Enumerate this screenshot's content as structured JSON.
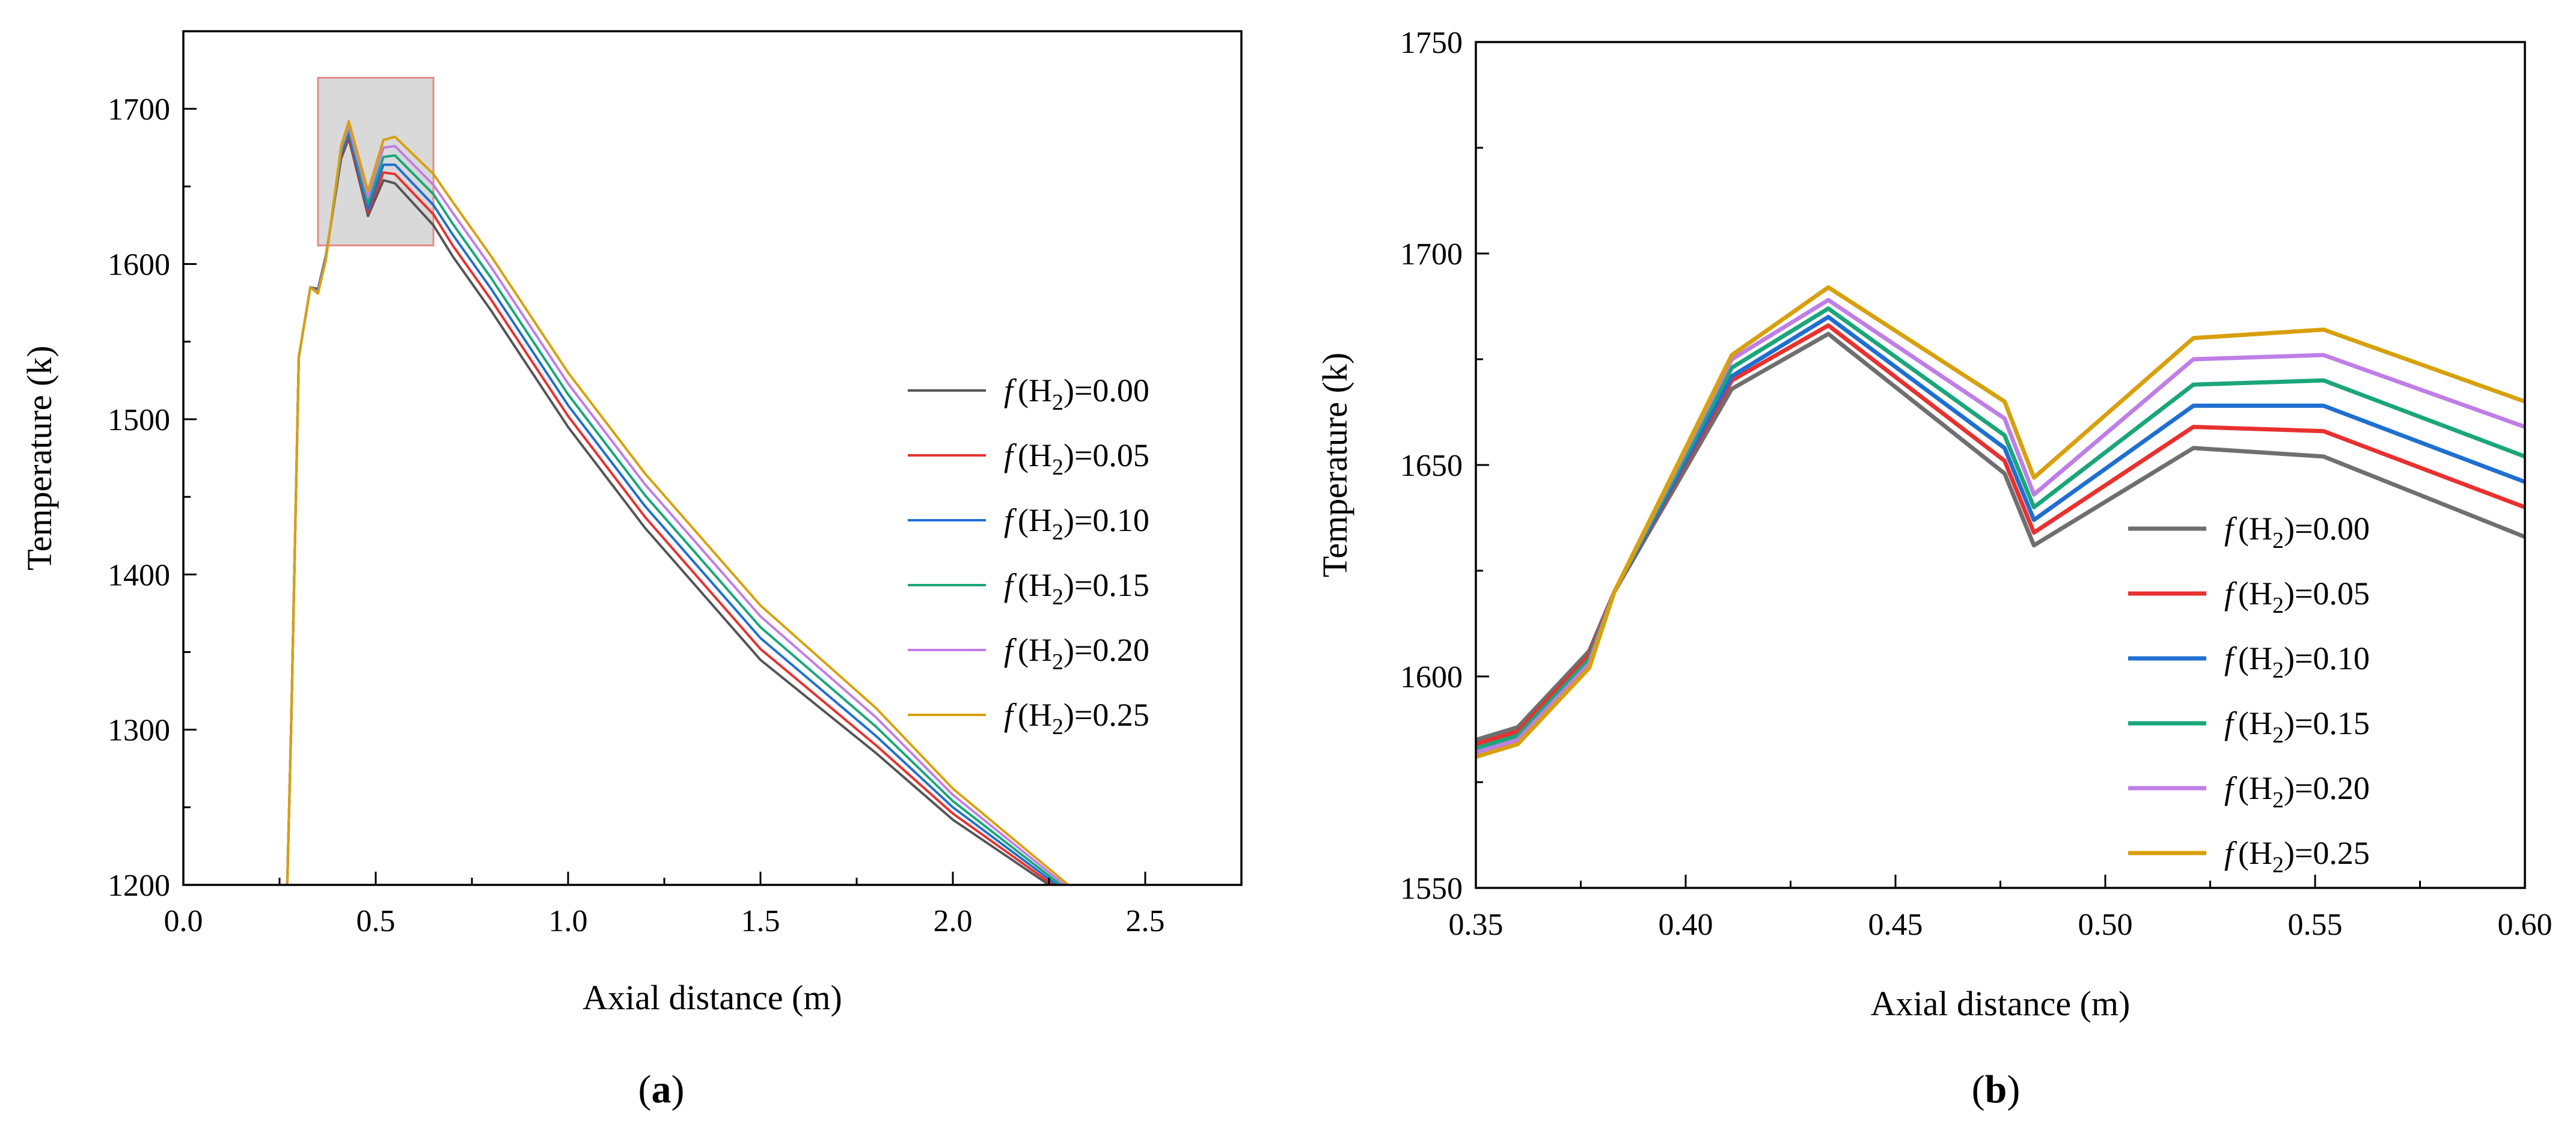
{
  "chart_data": [
    {
      "type": "line",
      "panel_label": "a",
      "xlabel": "Axial distance (m)",
      "ylabel": "Temperature (k)",
      "xlim": [
        0.0,
        2.75
      ],
      "ylim": [
        1200,
        1750
      ],
      "xticks": [
        "0.0",
        "0.5",
        "1.0",
        "1.5",
        "2.0",
        "2.5"
      ],
      "yticks": [
        "1200",
        "1300",
        "1400",
        "1500",
        "1600",
        "1700"
      ],
      "legend_position": "center-right",
      "highlight_region": {
        "x": [
          0.35,
          0.65
        ],
        "y": [
          1612,
          1720
        ]
      },
      "series": [
        {
          "name": "f(H2)=0.00",
          "f": "f",
          "base": "(H",
          "sub": "2",
          "suffix": ")=0.00",
          "color": "#555555",
          "x": [
            0.27,
            0.28,
            0.3,
            0.33,
            0.35,
            0.37,
            0.38,
            0.41,
            0.43,
            0.48,
            0.52,
            0.55,
            0.65,
            0.7,
            0.8,
            1.0,
            1.2,
            1.5,
            1.8,
            2.0,
            2.25
          ],
          "y": [
            1200,
            1300,
            1540,
            1585,
            1584,
            1605,
            1620,
            1668,
            1681,
            1631,
            1654,
            1652,
            1625,
            1605,
            1570,
            1495,
            1430,
            1345,
            1285,
            1242,
            1200
          ]
        },
        {
          "name": "f(H2)=0.05",
          "f": "f",
          "base": "(H",
          "sub": "2",
          "suffix": ")=0.05",
          "color": "#e8312f",
          "x": [
            0.27,
            0.28,
            0.3,
            0.33,
            0.35,
            0.37,
            0.38,
            0.41,
            0.43,
            0.48,
            0.52,
            0.55,
            0.65,
            0.7,
            0.8,
            1.0,
            1.2,
            1.5,
            1.8,
            2.0,
            2.26
          ],
          "y": [
            1200,
            1300,
            1540,
            1585,
            1583,
            1604,
            1620,
            1670,
            1683,
            1633,
            1659,
            1658,
            1632,
            1612,
            1577,
            1502,
            1437,
            1352,
            1290,
            1246,
            1200
          ]
        },
        {
          "name": "f(H2)=0.10",
          "f": "f",
          "base": "(H",
          "sub": "2",
          "suffix": ")=0.10",
          "color": "#1f6fd1",
          "x": [
            0.27,
            0.28,
            0.3,
            0.33,
            0.35,
            0.37,
            0.38,
            0.41,
            0.43,
            0.48,
            0.52,
            0.55,
            0.65,
            0.7,
            0.8,
            1.0,
            1.2,
            1.5,
            1.8,
            2.0,
            2.27
          ],
          "y": [
            1200,
            1300,
            1540,
            1585,
            1583,
            1604,
            1620,
            1671,
            1685,
            1635,
            1664,
            1664,
            1638,
            1619,
            1584,
            1509,
            1444,
            1359,
            1296,
            1250,
            1200
          ]
        },
        {
          "name": "f(H2)=0.15",
          "f": "f",
          "base": "(H",
          "sub": "2",
          "suffix": ")=0.15",
          "color": "#1aa67a",
          "x": [
            0.27,
            0.28,
            0.3,
            0.33,
            0.35,
            0.37,
            0.38,
            0.41,
            0.43,
            0.48,
            0.52,
            0.55,
            0.65,
            0.7,
            0.8,
            1.0,
            1.2,
            1.5,
            1.8,
            2.0,
            2.28
          ],
          "y": [
            1200,
            1300,
            1540,
            1585,
            1582,
            1603,
            1620,
            1673,
            1687,
            1639,
            1669,
            1670,
            1645,
            1626,
            1591,
            1516,
            1451,
            1366,
            1302,
            1254,
            1200
          ]
        },
        {
          "name": "f(H2)=0.20",
          "f": "f",
          "base": "(H",
          "sub": "2",
          "suffix": ")=0.20",
          "color": "#bf7ee6",
          "x": [
            0.27,
            0.28,
            0.3,
            0.33,
            0.35,
            0.37,
            0.38,
            0.41,
            0.43,
            0.48,
            0.52,
            0.55,
            0.65,
            0.7,
            0.8,
            1.0,
            1.2,
            1.5,
            1.8,
            2.0,
            2.29
          ],
          "y": [
            1200,
            1300,
            1540,
            1585,
            1582,
            1603,
            1620,
            1675,
            1689,
            1643,
            1675,
            1676,
            1651,
            1633,
            1598,
            1523,
            1458,
            1373,
            1308,
            1258,
            1200
          ]
        },
        {
          "name": "f(H2)=0.25",
          "f": "f",
          "base": "(H",
          "sub": "2",
          "suffix": ")=0.25",
          "color": "#d8a00c",
          "x": [
            0.27,
            0.28,
            0.3,
            0.33,
            0.35,
            0.37,
            0.38,
            0.41,
            0.43,
            0.48,
            0.52,
            0.55,
            0.65,
            0.7,
            0.8,
            1.0,
            1.2,
            1.5,
            1.8,
            2.0,
            2.3
          ],
          "y": [
            1200,
            1300,
            1540,
            1585,
            1581,
            1602,
            1620,
            1676,
            1692,
            1647,
            1680,
            1682,
            1658,
            1640,
            1605,
            1530,
            1465,
            1380,
            1314,
            1262,
            1200
          ]
        }
      ]
    },
    {
      "type": "line",
      "panel_label": "b",
      "xlabel": "Axial distance (m)",
      "ylabel": "Temperature (k)",
      "xlim": [
        0.35,
        0.6
      ],
      "ylim": [
        1550,
        1750
      ],
      "xticks": [
        "0.35",
        "0.40",
        "0.45",
        "0.50",
        "0.55",
        "0.60"
      ],
      "yticks": [
        "1550",
        "1600",
        "1650",
        "1700",
        "1750"
      ],
      "legend_position": "lower-right",
      "series": [
        {
          "name": "f(H2)=0.00",
          "f": "f",
          "base": "(H",
          "sub": "2",
          "suffix": ")=0.00",
          "color": "#6f6f6f",
          "x": [
            0.35,
            0.36,
            0.377,
            0.383,
            0.411,
            0.434,
            0.476,
            0.483,
            0.521,
            0.552,
            0.6
          ],
          "y": [
            1585,
            1588,
            1606,
            1620,
            1668,
            1681,
            1648,
            1631,
            1654,
            1652,
            1633
          ]
        },
        {
          "name": "f(H2)=0.05",
          "f": "f",
          "base": "(H",
          "sub": "2",
          "suffix": ")=0.05",
          "color": "#e8312f",
          "x": [
            0.35,
            0.36,
            0.377,
            0.383,
            0.411,
            0.434,
            0.476,
            0.483,
            0.521,
            0.552,
            0.6
          ],
          "y": [
            1584,
            1587,
            1605,
            1620,
            1670,
            1683,
            1651,
            1634,
            1659,
            1658,
            1640
          ]
        },
        {
          "name": "f(H2)=0.10",
          "f": "f",
          "base": "(H",
          "sub": "2",
          "suffix": ")=0.10",
          "color": "#1f6fd1",
          "x": [
            0.35,
            0.36,
            0.377,
            0.383,
            0.411,
            0.434,
            0.476,
            0.483,
            0.521,
            0.552,
            0.6
          ],
          "y": [
            1583,
            1586,
            1604,
            1620,
            1671,
            1685,
            1654,
            1637,
            1664,
            1664,
            1646
          ]
        },
        {
          "name": "f(H2)=0.15",
          "f": "f",
          "base": "(H",
          "sub": "2",
          "suffix": ")=0.15",
          "color": "#1aa67a",
          "x": [
            0.35,
            0.36,
            0.377,
            0.383,
            0.411,
            0.434,
            0.476,
            0.483,
            0.521,
            0.552,
            0.6
          ],
          "y": [
            1583,
            1586,
            1604,
            1620,
            1673,
            1687,
            1657,
            1640,
            1669,
            1670,
            1652
          ]
        },
        {
          "name": "f(H2)=0.20",
          "f": "f",
          "base": "(H",
          "sub": "2",
          "suffix": ")=0.20",
          "color": "#bf7ee6",
          "x": [
            0.35,
            0.36,
            0.377,
            0.383,
            0.411,
            0.434,
            0.476,
            0.483,
            0.521,
            0.552,
            0.6
          ],
          "y": [
            1582,
            1585,
            1603,
            1620,
            1675,
            1689,
            1661,
            1643,
            1675,
            1676,
            1659
          ]
        },
        {
          "name": "f(H2)=0.25",
          "f": "f",
          "base": "(H",
          "sub": "2",
          "suffix": ")=0.25",
          "color": "#d8a00c",
          "x": [
            0.35,
            0.36,
            0.377,
            0.383,
            0.411,
            0.434,
            0.476,
            0.483,
            0.521,
            0.552,
            0.6
          ],
          "y": [
            1581,
            1584,
            1602,
            1620,
            1676,
            1692,
            1665,
            1647,
            1680,
            1682,
            1665
          ]
        }
      ]
    }
  ]
}
